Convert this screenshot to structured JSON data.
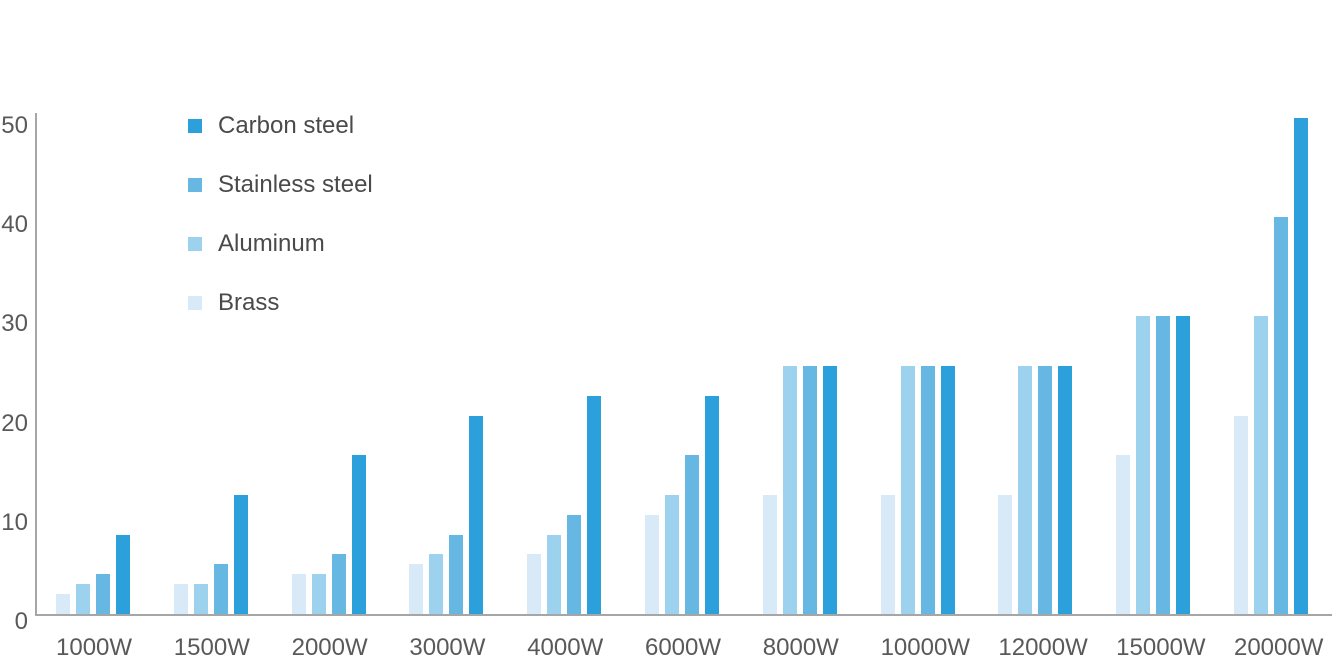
{
  "chart_data": {
    "type": "bar",
    "title": "",
    "xlabel": "",
    "ylabel": "",
    "grid": false,
    "ylim": [
      0,
      50.5
    ],
    "yticks": [
      0,
      10,
      20,
      30,
      40,
      50
    ],
    "categories": [
      "1000W",
      "1500W",
      "2000W",
      "3000W",
      "4000W",
      "6000W",
      "8000W",
      "10000W",
      "12000W",
      "15000W",
      "20000W"
    ],
    "series": [
      {
        "name": "Brass",
        "color": "#d8eaf7",
        "values": [
          2,
          3,
          4,
          5,
          6,
          10,
          12,
          12,
          12,
          16,
          20
        ]
      },
      {
        "name": "Aluminum",
        "color": "#9dd2ee",
        "values": [
          3,
          3,
          4,
          6,
          8,
          12,
          25,
          25,
          25,
          30,
          30
        ]
      },
      {
        "name": "Stainless steel",
        "color": "#66b8e3",
        "values": [
          4,
          5,
          6,
          8,
          10,
          16,
          25,
          25,
          25,
          30,
          40
        ]
      },
      {
        "name": "Carbon steel",
        "color": "#2ca0db",
        "values": [
          8,
          12,
          16,
          20,
          22,
          22,
          25,
          25,
          25,
          30,
          50
        ]
      }
    ],
    "legend": {
      "position": "top-left",
      "order": [
        "Carbon steel",
        "Stainless steel",
        "Aluminum",
        "Brass"
      ]
    }
  },
  "colors": {
    "axis_line": "#a6a6a6",
    "tick_label_text": "#595959",
    "legend_text": "#4a4a4a",
    "background": "#ffffff"
  }
}
